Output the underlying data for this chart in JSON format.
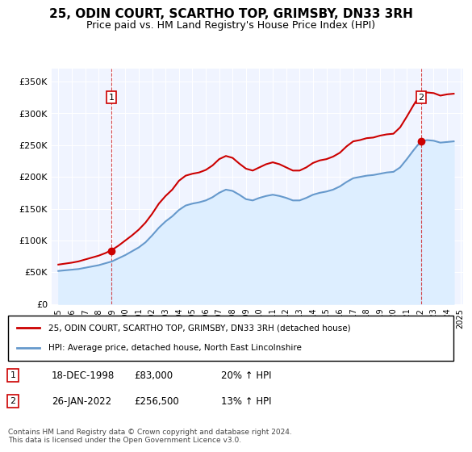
{
  "title": "25, ODIN COURT, SCARTHO TOP, GRIMSBY, DN33 3RH",
  "subtitle": "Price paid vs. HM Land Registry's House Price Index (HPI)",
  "legend_line1": "25, ODIN COURT, SCARTHO TOP, GRIMSBY, DN33 3RH (detached house)",
  "legend_line2": "HPI: Average price, detached house, North East Lincolnshire",
  "footer": "Contains HM Land Registry data © Crown copyright and database right 2024.\nThis data is licensed under the Open Government Licence v3.0.",
  "table": [
    [
      "1",
      "18-DEC-1998",
      "£83,000",
      "20% ↑ HPI"
    ],
    [
      "2",
      "26-JAN-2022",
      "£256,500",
      "13% ↑ HPI"
    ]
  ],
  "sale_color": "#cc0000",
  "hpi_color": "#6699cc",
  "hpi_fill_color": "#ddeeff",
  "background_color": "#f0f4ff",
  "ylim": [
    0,
    370000
  ],
  "yticks": [
    0,
    50000,
    100000,
    150000,
    200000,
    250000,
    300000,
    350000
  ],
  "sale_points": [
    [
      1998.96,
      83000
    ],
    [
      2022.07,
      256500
    ]
  ],
  "hpi_x": [
    1995.0,
    1995.5,
    1996.0,
    1996.5,
    1997.0,
    1997.5,
    1998.0,
    1998.5,
    1999.0,
    1999.5,
    2000.0,
    2000.5,
    2001.0,
    2001.5,
    2002.0,
    2002.5,
    2003.0,
    2003.5,
    2004.0,
    2004.5,
    2005.0,
    2005.5,
    2006.0,
    2006.5,
    2007.0,
    2007.5,
    2008.0,
    2008.5,
    2009.0,
    2009.5,
    2010.0,
    2010.5,
    2011.0,
    2011.5,
    2012.0,
    2012.5,
    2013.0,
    2013.5,
    2014.0,
    2014.5,
    2015.0,
    2015.5,
    2016.0,
    2016.5,
    2017.0,
    2017.5,
    2018.0,
    2018.5,
    2019.0,
    2019.5,
    2020.0,
    2020.5,
    2021.0,
    2021.5,
    2022.0,
    2022.5,
    2023.0,
    2023.5,
    2024.0,
    2024.5
  ],
  "hpi_y": [
    52000,
    53000,
    54000,
    55000,
    57000,
    59000,
    61000,
    64000,
    67000,
    72000,
    77000,
    83000,
    89000,
    97000,
    108000,
    120000,
    130000,
    138000,
    148000,
    155000,
    158000,
    160000,
    163000,
    168000,
    175000,
    180000,
    178000,
    172000,
    165000,
    163000,
    167000,
    170000,
    172000,
    170000,
    167000,
    163000,
    163000,
    167000,
    172000,
    175000,
    177000,
    180000,
    185000,
    192000,
    198000,
    200000,
    202000,
    203000,
    205000,
    207000,
    208000,
    215000,
    228000,
    242000,
    255000,
    258000,
    257000,
    254000,
    255000,
    256000
  ],
  "price_x": [
    1995.0,
    1995.5,
    1996.0,
    1996.5,
    1997.0,
    1997.5,
    1998.0,
    1998.5,
    1999.0,
    1999.5,
    2000.0,
    2000.5,
    2001.0,
    2001.5,
    2002.0,
    2002.5,
    2003.0,
    2003.5,
    2004.0,
    2004.5,
    2005.0,
    2005.5,
    2006.0,
    2006.5,
    2007.0,
    2007.5,
    2008.0,
    2008.5,
    2009.0,
    2009.5,
    2010.0,
    2010.5,
    2011.0,
    2011.5,
    2012.0,
    2012.5,
    2013.0,
    2013.5,
    2014.0,
    2014.5,
    2015.0,
    2015.5,
    2016.0,
    2016.5,
    2017.0,
    2017.5,
    2018.0,
    2018.5,
    2019.0,
    2019.5,
    2020.0,
    2020.5,
    2021.0,
    2021.5,
    2022.0,
    2022.5,
    2023.0,
    2023.5,
    2024.0,
    2024.5
  ],
  "price_y": [
    62000,
    63500,
    65000,
    67000,
    70000,
    73000,
    76000,
    80000,
    85000,
    92000,
    100000,
    108000,
    117000,
    128000,
    142000,
    158000,
    170000,
    180000,
    194000,
    202000,
    205000,
    207000,
    211000,
    218000,
    228000,
    233000,
    230000,
    221000,
    213000,
    210000,
    215000,
    220000,
    223000,
    220000,
    215000,
    210000,
    210000,
    215000,
    222000,
    226000,
    228000,
    232000,
    238000,
    248000,
    256000,
    258000,
    261000,
    262000,
    265000,
    267000,
    268000,
    278000,
    295000,
    313000,
    330000,
    333000,
    332000,
    328000,
    330000,
    331000
  ]
}
